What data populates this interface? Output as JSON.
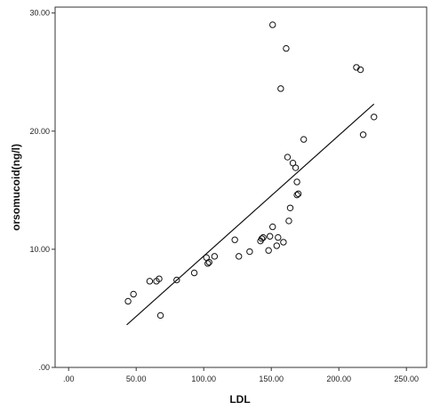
{
  "chart_data": {
    "type": "scatter",
    "title": "",
    "xlabel": "LDL",
    "ylabel": "orsomucoid(ng/l)",
    "xlim": [
      -10,
      265
    ],
    "ylim": [
      0,
      30.5
    ],
    "x_ticks": [
      {
        "value": 0,
        "label": ".00"
      },
      {
        "value": 50,
        "label": "50.00"
      },
      {
        "value": 100,
        "label": "100.00"
      },
      {
        "value": 150,
        "label": "150.00"
      },
      {
        "value": 200,
        "label": "200.00"
      },
      {
        "value": 250,
        "label": "250.00"
      }
    ],
    "y_ticks": [
      {
        "value": 0,
        "label": ".00"
      },
      {
        "value": 10,
        "label": "10.00"
      },
      {
        "value": 20,
        "label": "20.00"
      },
      {
        "value": 30,
        "label": "30.00"
      }
    ],
    "grid": false,
    "series": [
      {
        "points": [
          [
            44,
            5.6
          ],
          [
            48,
            6.2
          ],
          [
            60,
            7.3
          ],
          [
            65,
            7.3
          ],
          [
            67,
            7.5
          ],
          [
            68,
            4.4
          ],
          [
            80,
            7.4
          ],
          [
            93,
            8.0
          ],
          [
            102,
            9.3
          ],
          [
            103,
            8.8
          ],
          [
            104,
            8.9
          ],
          [
            108,
            9.4
          ],
          [
            123,
            10.8
          ],
          [
            126,
            9.4
          ],
          [
            134,
            9.8
          ],
          [
            142,
            10.7
          ],
          [
            143,
            10.9
          ],
          [
            144,
            11.0
          ],
          [
            148,
            9.9
          ],
          [
            149,
            11.1
          ],
          [
            151,
            11.9
          ],
          [
            151,
            29.0
          ],
          [
            154,
            10.3
          ],
          [
            155,
            11.0
          ],
          [
            157,
            23.6
          ],
          [
            159,
            10.6
          ],
          [
            161,
            27.0
          ],
          [
            162,
            17.8
          ],
          [
            163,
            12.4
          ],
          [
            164,
            13.5
          ],
          [
            166,
            17.3
          ],
          [
            168,
            16.9
          ],
          [
            169,
            15.7
          ],
          [
            169,
            14.6
          ],
          [
            170,
            14.7
          ],
          [
            174,
            19.3
          ],
          [
            213,
            25.4
          ],
          [
            216,
            25.2
          ],
          [
            218,
            19.7
          ],
          [
            226,
            21.2
          ]
        ]
      }
    ],
    "fit_line": {
      "x": [
        43,
        226
      ],
      "y": [
        3.6,
        22.3
      ]
    }
  }
}
